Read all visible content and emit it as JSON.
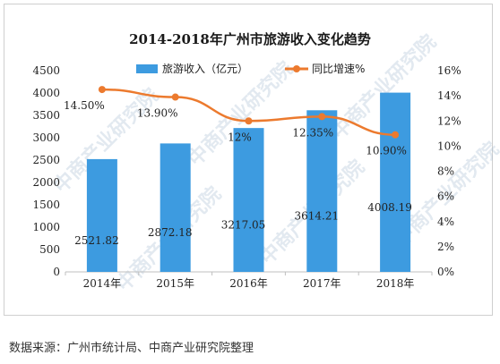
{
  "watermark": "中商产业研究院",
  "footer": {
    "source": "数据来源：广州市统计局、中商产业研究院整理"
  },
  "chart_data": {
    "type": "bar+line",
    "title": "2014-2018年广州市旅游收入变化趋势",
    "categories": [
      "2014年",
      "2015年",
      "2016年",
      "2017年",
      "2018年"
    ],
    "series": [
      {
        "name": "旅游收入（亿元）",
        "type": "bar",
        "axis": "left",
        "values": [
          2521.82,
          2872.18,
          3217.05,
          3614.21,
          4008.19
        ],
        "labels": [
          "2521.82",
          "2872.18",
          "3217.05",
          "3614.21",
          "4008.19"
        ],
        "color": "#3d9be0"
      },
      {
        "name": "同比增速%",
        "type": "line",
        "axis": "right",
        "values": [
          14.5,
          13.9,
          12.0,
          12.35,
          10.9
        ],
        "labels": [
          "14.50%",
          "13.90%",
          "12%",
          "12.35%",
          "10.90%"
        ],
        "color": "#ec7a2e"
      }
    ],
    "y_left": {
      "ylim": [
        0,
        4500
      ],
      "ticks": [
        "0",
        "500",
        "1000",
        "1500",
        "2000",
        "2500",
        "3000",
        "3500",
        "4000",
        "4500"
      ]
    },
    "y_right": {
      "ylim": [
        0,
        16
      ],
      "ticks": [
        "0%",
        "2%",
        "4%",
        "6%",
        "8%",
        "10%",
        "12%",
        "14%",
        "16%"
      ]
    },
    "grid": false,
    "legend_position": "top"
  }
}
